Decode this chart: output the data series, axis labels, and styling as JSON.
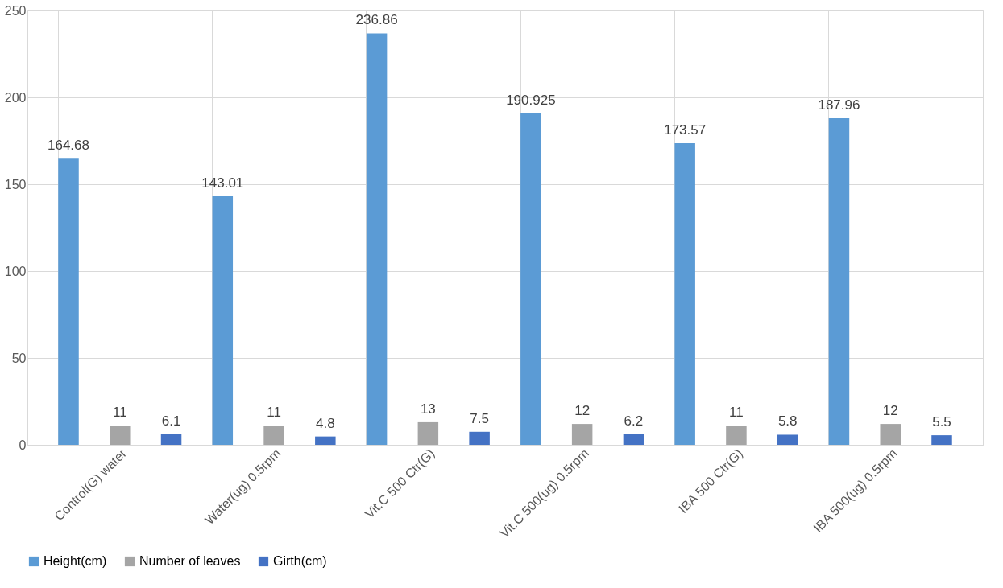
{
  "chart_data": {
    "type": "bar",
    "categories": [
      "Control(G) water",
      "Water(ug) 0.5rpm",
      "Vit.C 500 Ctr(G)",
      "Vit.C 500(ug) 0.5rpm",
      "IBA 500 Ctr(G)",
      "IBA 500(ug) 0.5rpm"
    ],
    "series": [
      {
        "name": "Height(cm)",
        "color": "#5b9bd5",
        "values": [
          164.68,
          143.01,
          236.86,
          190.925,
          173.57,
          187.96
        ]
      },
      {
        "name": "Number of leaves",
        "color": "#a5a5a5",
        "values": [
          11,
          11,
          13,
          12,
          11,
          12
        ]
      },
      {
        "name": "Girth(cm)",
        "color": "#4472c4",
        "values": [
          6.1,
          4.8,
          7.5,
          6.2,
          5.8,
          5.5
        ]
      }
    ],
    "ylim": [
      0,
      250
    ],
    "yticks": [
      0,
      50,
      100,
      150,
      200,
      250
    ],
    "grid": true,
    "legend": "bottom",
    "data_labels": true
  }
}
